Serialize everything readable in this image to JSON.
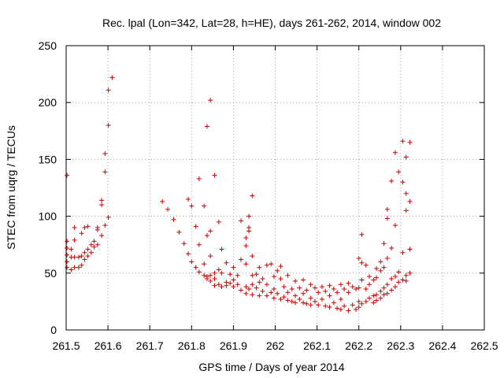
{
  "chart_data": {
    "type": "scatter",
    "title": "Rec. lpal (Lon=342, Lat=28, h=HE), days 261-262, 2014, window 002",
    "xlabel": "GPS time / Days of year 2014",
    "ylabel": "STEC from uqrg / TECUs",
    "xlim": [
      261.5,
      262.5
    ],
    "ylim": [
      0,
      250
    ],
    "xticks": [
      261.5,
      261.6,
      261.7,
      261.8,
      261.9,
      262.0,
      262.1,
      262.2,
      262.3,
      262.4,
      262.5
    ],
    "xtick_labels": [
      "261.5",
      "261.6",
      "261.7",
      "261.8",
      "261.9",
      "262",
      "262.1",
      "262.2",
      "262.3",
      "262.4",
      "262.5"
    ],
    "yticks": [
      0,
      50,
      100,
      150,
      200,
      250
    ],
    "ytick_labels": [
      "0",
      "50",
      "100",
      "150",
      "200",
      "250"
    ],
    "grid": true,
    "marker": "+",
    "color": "#cc0000",
    "series": [
      {
        "name": "STEC",
        "points": [
          [
            261.502,
            136
          ],
          [
            261.502,
            78
          ],
          [
            261.502,
            72
          ],
          [
            261.502,
            66
          ],
          [
            261.502,
            60
          ],
          [
            261.502,
            55
          ],
          [
            261.512,
            71
          ],
          [
            261.512,
            64
          ],
          [
            261.512,
            53
          ],
          [
            261.52,
            90
          ],
          [
            261.52,
            79
          ],
          [
            261.52,
            64
          ],
          [
            261.52,
            55
          ],
          [
            261.53,
            64
          ],
          [
            261.53,
            55
          ],
          [
            261.537,
            85
          ],
          [
            261.537,
            65
          ],
          [
            261.537,
            57
          ],
          [
            261.544,
            90
          ],
          [
            261.544,
            68
          ],
          [
            261.544,
            62
          ],
          [
            261.552,
            91
          ],
          [
            261.552,
            71
          ],
          [
            261.552,
            65
          ],
          [
            261.56,
            75
          ],
          [
            261.56,
            68
          ],
          [
            261.567,
            78
          ],
          [
            261.567,
            73
          ],
          [
            261.575,
            90
          ],
          [
            261.575,
            88
          ],
          [
            261.575,
            75
          ],
          [
            261.585,
            83
          ],
          [
            261.585,
            114
          ],
          [
            261.585,
            110
          ],
          [
            261.593,
            155
          ],
          [
            261.593,
            139
          ],
          [
            261.593,
            92
          ],
          [
            261.601,
            211
          ],
          [
            261.601,
            180
          ],
          [
            261.601,
            99
          ],
          [
            261.61,
            222
          ],
          [
            261.73,
            113
          ],
          [
            261.743,
            106
          ],
          [
            261.757,
            97
          ],
          [
            261.77,
            86
          ],
          [
            261.782,
            76
          ],
          [
            261.792,
            115
          ],
          [
            261.792,
            67
          ],
          [
            261.8,
            109
          ],
          [
            261.8,
            60
          ],
          [
            261.81,
            91
          ],
          [
            261.81,
            55
          ],
          [
            261.818,
            133
          ],
          [
            261.818,
            75
          ],
          [
            261.818,
            51
          ],
          [
            261.83,
            109
          ],
          [
            261.83,
            58
          ],
          [
            261.83,
            48
          ],
          [
            261.837,
            179
          ],
          [
            261.837,
            83
          ],
          [
            261.837,
            47
          ],
          [
            261.837,
            45
          ],
          [
            261.845,
            202
          ],
          [
            261.845,
            87
          ],
          [
            261.845,
            65
          ],
          [
            261.845,
            48
          ],
          [
            261.845,
            43
          ],
          [
            261.855,
            136
          ],
          [
            261.855,
            50
          ],
          [
            261.855,
            45
          ],
          [
            261.855,
            39
          ],
          [
            261.865,
            95
          ],
          [
            261.865,
            53
          ],
          [
            261.865,
            40
          ],
          [
            261.872,
            71
          ],
          [
            261.872,
            50
          ],
          [
            261.872,
            38
          ],
          [
            261.883,
            59
          ],
          [
            261.883,
            42
          ],
          [
            261.883,
            39
          ],
          [
            261.892,
            49
          ],
          [
            261.892,
            41
          ],
          [
            261.9,
            55
          ],
          [
            261.9,
            44
          ],
          [
            261.9,
            38
          ],
          [
            261.91,
            48
          ],
          [
            261.91,
            40
          ],
          [
            261.918,
            96
          ],
          [
            261.918,
            62
          ],
          [
            261.918,
            35
          ],
          [
            261.93,
            81
          ],
          [
            261.93,
            74
          ],
          [
            261.93,
            58
          ],
          [
            261.93,
            38
          ],
          [
            261.93,
            32
          ],
          [
            261.937,
            100
          ],
          [
            261.937,
            90
          ],
          [
            261.937,
            87
          ],
          [
            261.937,
            36
          ],
          [
            261.945,
            118
          ],
          [
            261.945,
            65
          ],
          [
            261.945,
            48
          ],
          [
            261.945,
            40
          ],
          [
            261.945,
            31
          ],
          [
            261.955,
            49
          ],
          [
            261.955,
            37
          ],
          [
            261.962,
            55
          ],
          [
            261.962,
            42
          ],
          [
            261.962,
            30
          ],
          [
            261.97,
            45
          ],
          [
            261.97,
            34
          ],
          [
            261.98,
            57
          ],
          [
            261.98,
            40
          ],
          [
            261.98,
            30
          ],
          [
            261.99,
            58
          ],
          [
            261.99,
            33
          ],
          [
            261.997,
            47
          ],
          [
            261.997,
            36
          ],
          [
            261.997,
            28
          ],
          [
            262.005,
            52
          ],
          [
            262.005,
            32
          ],
          [
            262.013,
            56
          ],
          [
            262.013,
            45
          ],
          [
            262.013,
            27
          ],
          [
            262.021,
            38
          ],
          [
            262.021,
            29
          ],
          [
            262.03,
            48
          ],
          [
            262.03,
            33
          ],
          [
            262.03,
            26
          ],
          [
            262.04,
            36
          ],
          [
            262.04,
            25
          ],
          [
            262.048,
            43
          ],
          [
            262.048,
            30
          ],
          [
            262.048,
            24
          ],
          [
            262.058,
            37
          ],
          [
            262.058,
            27
          ],
          [
            262.067,
            44
          ],
          [
            262.067,
            32
          ],
          [
            262.067,
            24
          ],
          [
            262.075,
            35
          ],
          [
            262.075,
            23
          ],
          [
            262.085,
            40
          ],
          [
            262.085,
            28
          ],
          [
            262.085,
            22
          ],
          [
            262.095,
            37
          ],
          [
            262.095,
            25
          ],
          [
            262.103,
            33
          ],
          [
            262.103,
            22
          ],
          [
            262.112,
            38
          ],
          [
            262.112,
            27
          ],
          [
            262.12,
            34
          ],
          [
            262.12,
            21
          ],
          [
            262.13,
            39
          ],
          [
            262.13,
            30
          ],
          [
            262.13,
            20
          ],
          [
            262.14,
            36
          ],
          [
            262.14,
            24
          ],
          [
            262.148,
            33
          ],
          [
            262.148,
            19
          ],
          [
            262.157,
            40
          ],
          [
            262.157,
            27
          ],
          [
            262.157,
            18
          ],
          [
            262.165,
            36
          ],
          [
            262.165,
            21
          ],
          [
            262.175,
            41
          ],
          [
            262.175,
            33
          ],
          [
            262.175,
            17
          ],
          [
            262.185,
            38
          ],
          [
            262.185,
            22
          ],
          [
            262.193,
            36
          ],
          [
            262.193,
            18
          ],
          [
            262.2,
            63
          ],
          [
            262.2,
            37
          ],
          [
            262.2,
            25
          ],
          [
            262.2,
            20
          ],
          [
            262.207,
            84
          ],
          [
            262.207,
            59
          ],
          [
            262.207,
            44
          ],
          [
            262.207,
            23
          ],
          [
            262.217,
            57
          ],
          [
            262.217,
            36
          ],
          [
            262.217,
            25
          ],
          [
            262.225,
            47
          ],
          [
            262.225,
            40
          ],
          [
            262.225,
            28
          ],
          [
            262.235,
            44
          ],
          [
            262.235,
            30
          ],
          [
            262.235,
            24
          ],
          [
            262.242,
            54
          ],
          [
            262.242,
            46
          ],
          [
            262.242,
            31
          ],
          [
            262.242,
            26
          ],
          [
            262.252,
            60
          ],
          [
            262.252,
            52
          ],
          [
            262.252,
            34
          ],
          [
            262.252,
            28
          ],
          [
            262.26,
            76
          ],
          [
            262.26,
            55
          ],
          [
            262.26,
            37
          ],
          [
            262.26,
            31
          ],
          [
            262.268,
            106
          ],
          [
            262.268,
            98
          ],
          [
            262.268,
            63
          ],
          [
            262.268,
            40
          ],
          [
            262.268,
            32
          ],
          [
            262.278,
            131
          ],
          [
            262.278,
            72
          ],
          [
            262.278,
            45
          ],
          [
            262.278,
            35
          ],
          [
            262.287,
            156
          ],
          [
            262.287,
            92
          ],
          [
            262.287,
            47
          ],
          [
            262.287,
            38
          ],
          [
            262.295,
            139
          ],
          [
            262.295,
            51
          ],
          [
            262.295,
            42
          ],
          [
            262.305,
            166
          ],
          [
            262.305,
            130
          ],
          [
            262.305,
            68
          ],
          [
            262.305,
            44
          ],
          [
            262.313,
            152
          ],
          [
            262.313,
            120
          ],
          [
            262.313,
            105
          ],
          [
            262.313,
            48
          ],
          [
            262.313,
            43
          ],
          [
            262.322,
            165
          ],
          [
            262.322,
            113
          ],
          [
            262.322,
            71
          ],
          [
            262.322,
            50
          ]
        ]
      }
    ]
  }
}
